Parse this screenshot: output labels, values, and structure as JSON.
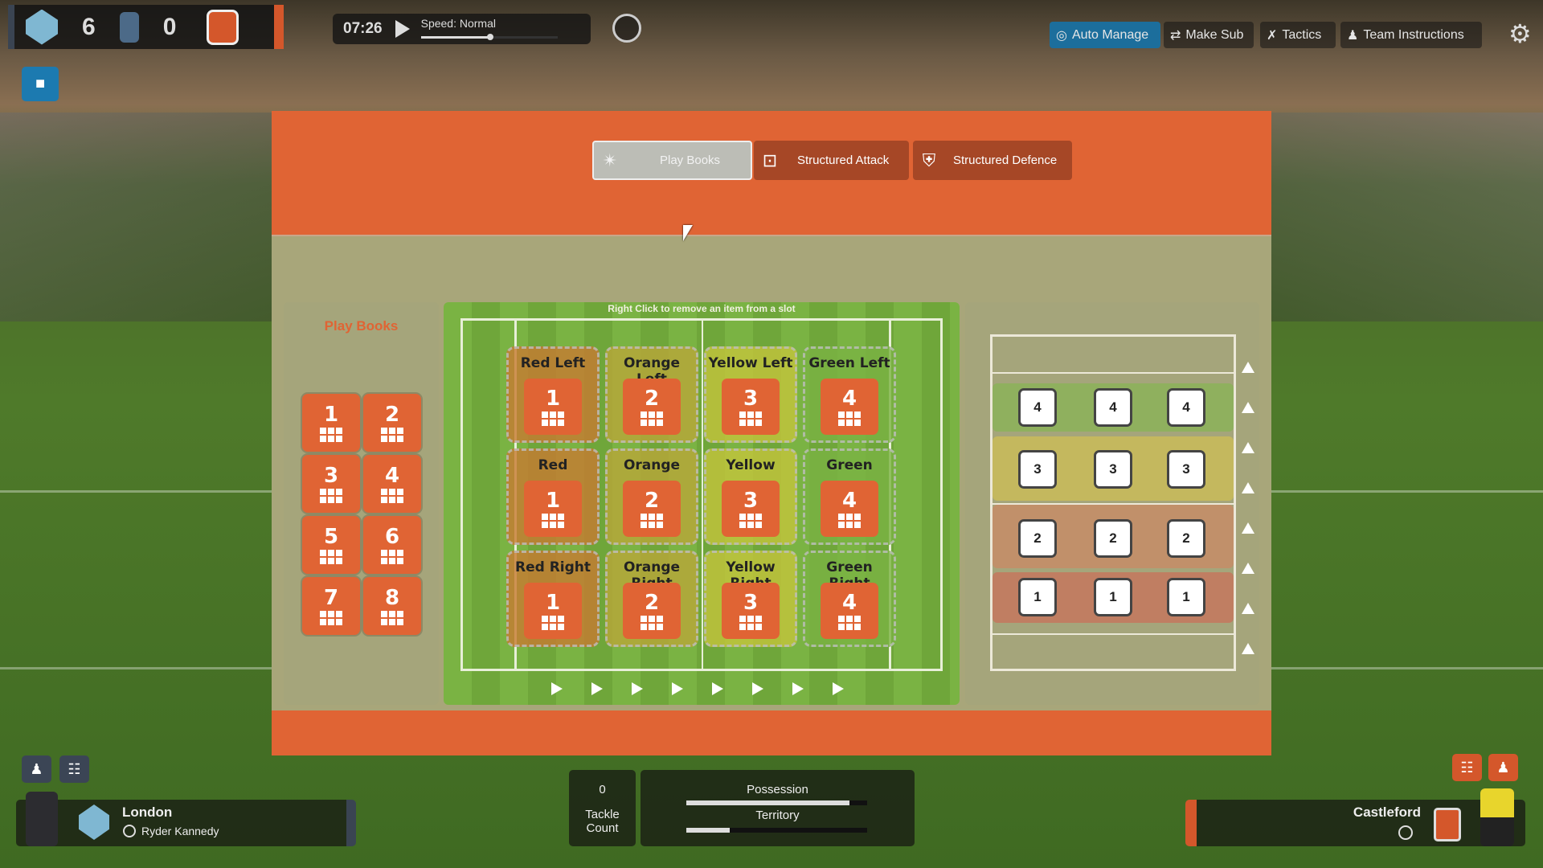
{
  "scoreboard": {
    "home_score": "6",
    "away_score": "0",
    "home_color": "#3a4452",
    "away_color": "#d4572b"
  },
  "clock": {
    "time": "07:26",
    "speed_label": "Speed: Normal",
    "speed_level": 0.5
  },
  "toolbar": {
    "auto_manage": "Auto Manage",
    "make_sub": "Make Sub",
    "tactics": "Tactics",
    "team_instructions": "Team Instructions",
    "accent": "#1c6e9c"
  },
  "tabs": [
    {
      "label": "Play Books",
      "active": true
    },
    {
      "label": "Structured Attack",
      "active": false
    },
    {
      "label": "Structured Defence",
      "active": false
    }
  ],
  "playbooks": {
    "title": "Play Books",
    "items": [
      "1",
      "2",
      "3",
      "4",
      "5",
      "6",
      "7",
      "8"
    ]
  },
  "pitch": {
    "hint": "Right Click to remove an item from a slot",
    "slots": [
      {
        "label": "Red Left",
        "value": "1"
      },
      {
        "label": "Orange Left",
        "value": "2"
      },
      {
        "label": "Yellow Left",
        "value": "3"
      },
      {
        "label": "Green Left",
        "value": "4"
      },
      {
        "label": "Red",
        "value": "1"
      },
      {
        "label": "Orange",
        "value": "2"
      },
      {
        "label": "Yellow",
        "value": "3"
      },
      {
        "label": "Green",
        "value": "4"
      },
      {
        "label": "Red Right",
        "value": "1"
      },
      {
        "label": "Orange Right",
        "value": "2"
      },
      {
        "label": "Yellow Right",
        "value": "3"
      },
      {
        "label": "Green Right",
        "value": "4"
      }
    ],
    "tint": [
      "#c77a32",
      "#b9a63a",
      "#c4c43c",
      "#7ab343"
    ]
  },
  "formation": {
    "rows": [
      [
        "4",
        "4",
        "4"
      ],
      [
        "3",
        "3",
        "3"
      ],
      [
        "2",
        "2",
        "2"
      ],
      [
        "1",
        "1",
        "1"
      ]
    ],
    "band_colors": [
      "#8fb05e",
      "#c4b85e",
      "#c1906a",
      "#c07e62"
    ]
  },
  "bottom": {
    "home_team": "London",
    "home_player": "Ryder Kannedy",
    "tackle_value": "0",
    "tackle_label_1": "Tackle",
    "tackle_label_2": "Count",
    "possession": "Possession",
    "possession_level": 0.9,
    "territory": "Territory",
    "territory_level": 0.24,
    "away_team": "Castleford"
  }
}
